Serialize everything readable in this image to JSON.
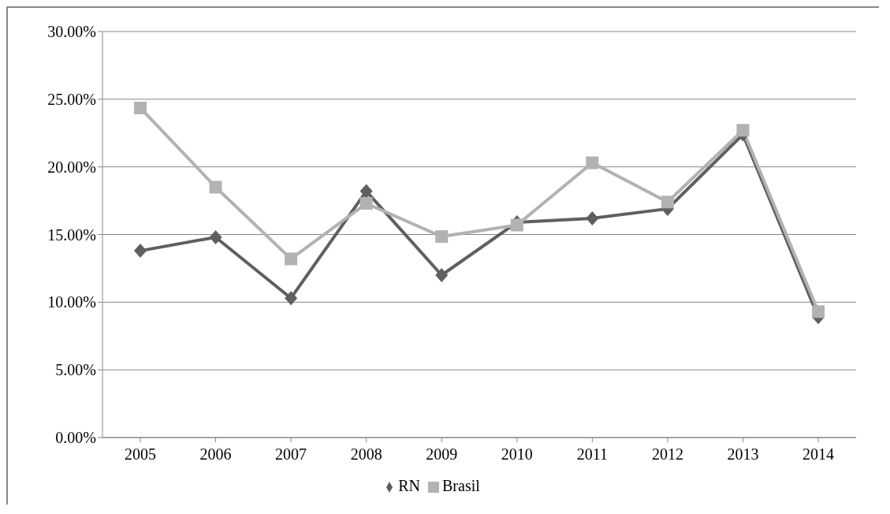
{
  "chart_data": {
    "type": "line",
    "categories": [
      "2005",
      "2006",
      "2007",
      "2008",
      "2009",
      "2010",
      "2011",
      "2012",
      "2013",
      "2014"
    ],
    "series": [
      {
        "name": "RN",
        "color": "#5f5f5f",
        "marker": "diamond",
        "values": [
          13.8,
          14.8,
          10.3,
          18.2,
          12.0,
          15.9,
          16.2,
          16.9,
          22.4,
          8.9
        ]
      },
      {
        "name": "Brasil",
        "color": "#b2b2b2",
        "marker": "square",
        "values": [
          24.35,
          18.5,
          13.2,
          17.3,
          14.85,
          15.7,
          20.3,
          17.4,
          22.7,
          9.3
        ]
      }
    ],
    "ylim": [
      0,
      30
    ],
    "yticks": [
      {
        "value": 0,
        "label": "0.00%"
      },
      {
        "value": 5,
        "label": "5.00%"
      },
      {
        "value": 10,
        "label": "10.00%"
      },
      {
        "value": 15,
        "label": "15.00%"
      },
      {
        "value": 20,
        "label": "20.00%"
      },
      {
        "value": 25,
        "label": "25.00%"
      },
      {
        "value": 30,
        "label": "30.00%"
      }
    ],
    "grid": "y",
    "legend": "bottom",
    "line_style": "solid"
  }
}
